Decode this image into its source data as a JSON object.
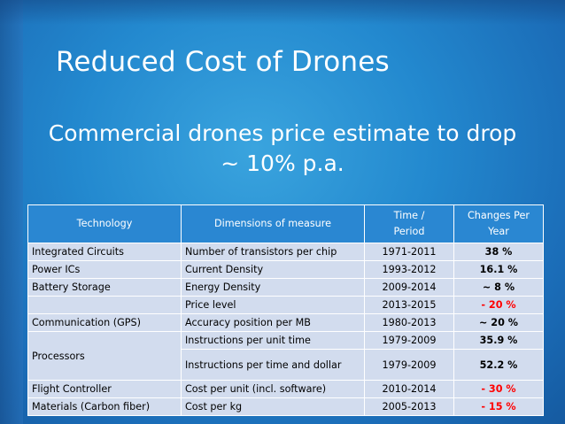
{
  "slide": {
    "title": "Reduced Cost of Drones",
    "subtitle_line1": "Commercial drones price estimate to drop",
    "subtitle_line2": "~ 10% p.a."
  },
  "table": {
    "headers": {
      "technology": "Technology",
      "dimensions": "Dimensions of measure",
      "time_line1": "Time /",
      "time_line2": "Period",
      "changes_line1": "Changes Per",
      "changes_line2": "Year"
    },
    "rows": [
      {
        "technology": "Integrated Circuits",
        "dimension": "Number of transistors per chip",
        "period": "1971-2011",
        "change": "38 %"
      },
      {
        "technology": "Power ICs",
        "dimension": "Current Density",
        "period": "1993-2012",
        "change": "16.1 %"
      },
      {
        "technology": "Battery Storage",
        "dimension": "Energy Density",
        "period": "2009-2014",
        "change": "~ 8 %"
      },
      {
        "technology": "",
        "dimension": "Price level",
        "period": "2013-2015",
        "change": "- 20 %"
      },
      {
        "technology": "Communication (GPS)",
        "dimension": "Accuracy position per MB",
        "period": "1980-2013",
        "change": "~ 20 %"
      },
      {
        "technology": "Processors",
        "dimension": "Instructions per unit time",
        "period": "1979-2009",
        "change": "35.9 %"
      },
      {
        "technology": "",
        "dimension": "Instructions per time and dollar",
        "period": "1979-2009",
        "change": "52.2 %"
      },
      {
        "technology": "Flight Controller",
        "dimension": "Cost per unit (incl. software)",
        "period": "2010-2014",
        "change": "- 30 %"
      },
      {
        "technology": "Materials (Carbon fiber)",
        "dimension": "Cost per kg",
        "period": "2005-2013",
        "change": "- 15 %"
      }
    ]
  },
  "colors": {
    "header_bg": "#2a87d2",
    "cell_bg": "#d2dcee",
    "negative": "#ff0000"
  }
}
